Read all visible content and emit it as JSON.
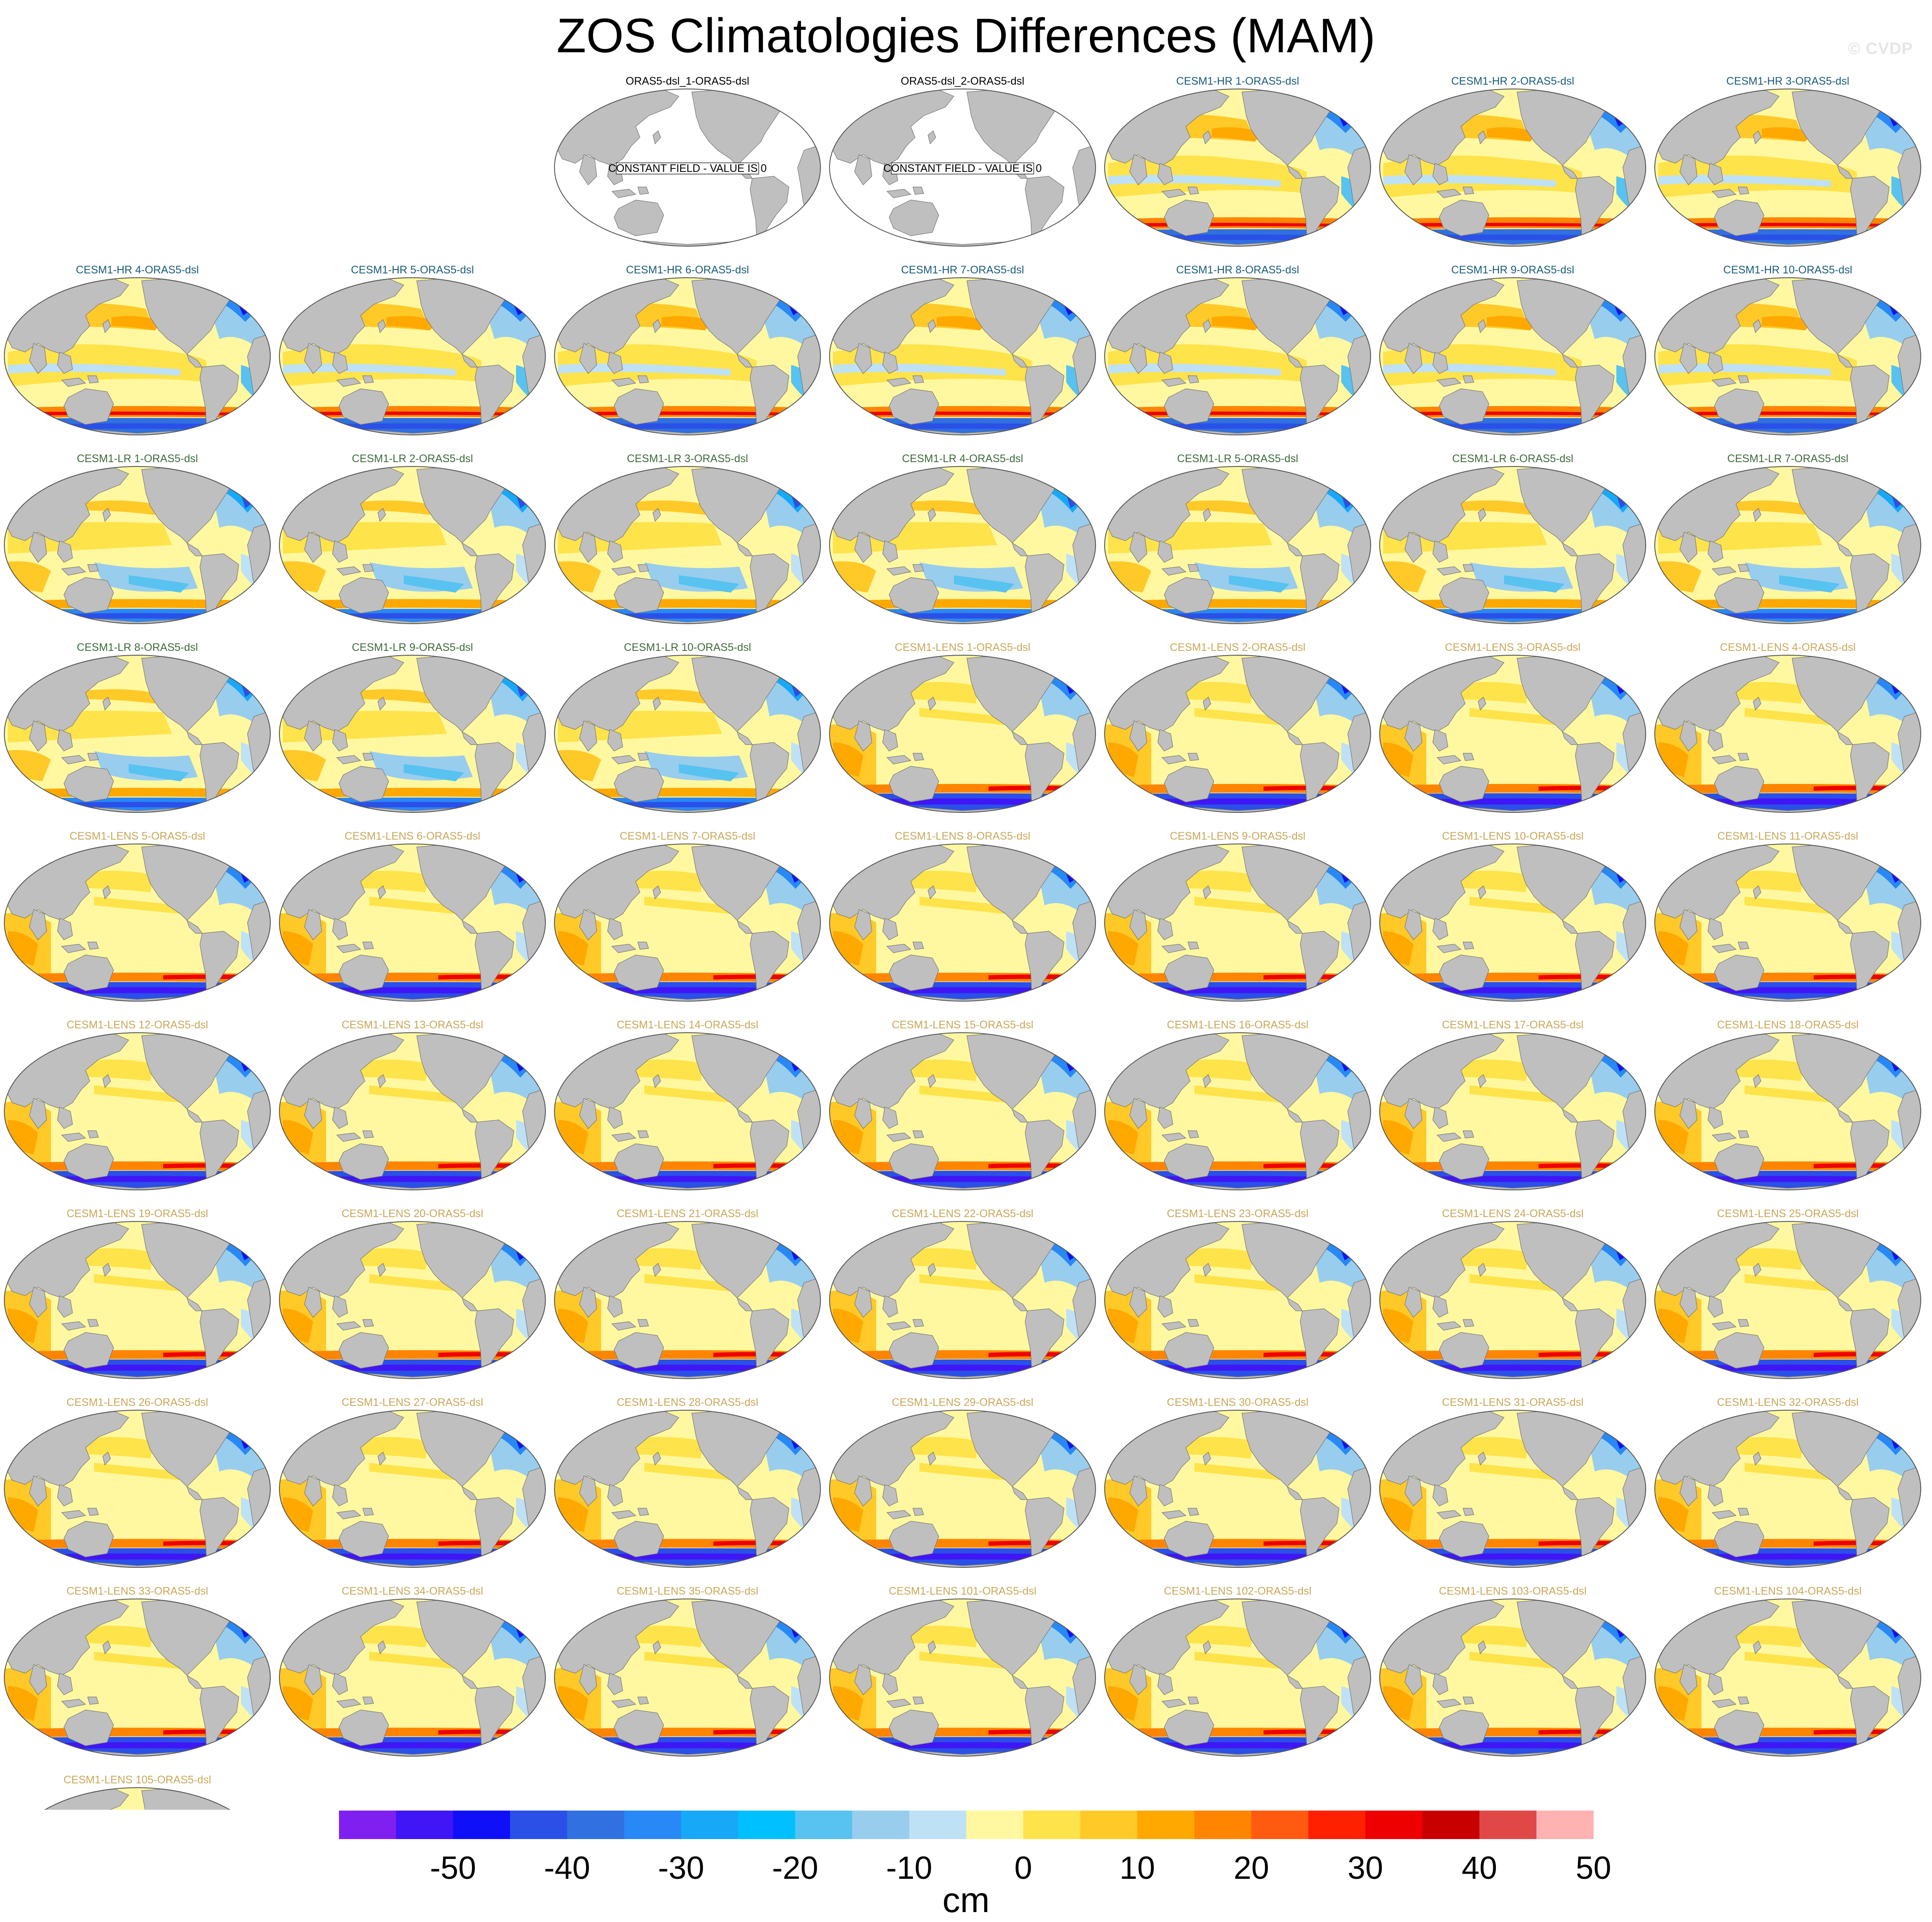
{
  "title": "ZOS Climatologies Differences (MAM)",
  "watermark": "© CVDP",
  "constant_field_note": "CONSTANT FIELD - VALUE IS 0",
  "colors": {
    "land": "#bfbfbf",
    "ocean_empty": "#ffffff",
    "label_obs": "#000000",
    "label_cesm1_hr": "#1a5c7a",
    "label_cesm1_lr": "#3d6b3a",
    "label_cesm1_lens": "#c9a75a"
  },
  "colorbar": {
    "unit": "cm",
    "bins": [
      "#8020f0",
      "#4016f6",
      "#1010f8",
      "#2a50e8",
      "#3070e0",
      "#2888f5",
      "#18a8f8",
      "#00c0ff",
      "#58c2f0",
      "#98cdee",
      "#bfe1f5",
      "#fff8a0",
      "#ffe34a",
      "#ffc928",
      "#ffa800",
      "#ff8500",
      "#ff5a10",
      "#ff2000",
      "#ee0000",
      "#c80000",
      "#e04848",
      "#ffb2b2"
    ],
    "tick_labels": [
      "-50",
      "-40",
      "-30",
      "-20",
      "-10",
      "0",
      "10",
      "20",
      "30",
      "40",
      "50"
    ]
  },
  "panels": [
    {
      "label": "ORAS5-dsl_1-ORAS5-dsl",
      "group": "obs",
      "constant": true
    },
    {
      "label": "ORAS5-dsl_2-ORAS5-dsl",
      "group": "obs",
      "constant": true
    },
    {
      "label": "CESM1-HR 1-ORAS5-dsl",
      "group": "hr"
    },
    {
      "label": "CESM1-HR 2-ORAS5-dsl",
      "group": "hr"
    },
    {
      "label": "CESM1-HR 3-ORAS5-dsl",
      "group": "hr"
    },
    {
      "label": "CESM1-HR 4-ORAS5-dsl",
      "group": "hr"
    },
    {
      "label": "CESM1-HR 5-ORAS5-dsl",
      "group": "hr"
    },
    {
      "label": "CESM1-HR 6-ORAS5-dsl",
      "group": "hr"
    },
    {
      "label": "CESM1-HR 7-ORAS5-dsl",
      "group": "hr"
    },
    {
      "label": "CESM1-HR 8-ORAS5-dsl",
      "group": "hr"
    },
    {
      "label": "CESM1-HR 9-ORAS5-dsl",
      "group": "hr"
    },
    {
      "label": "CESM1-HR 10-ORAS5-dsl",
      "group": "hr"
    },
    {
      "label": "CESM1-LR 1-ORAS5-dsl",
      "group": "lr"
    },
    {
      "label": "CESM1-LR 2-ORAS5-dsl",
      "group": "lr"
    },
    {
      "label": "CESM1-LR 3-ORAS5-dsl",
      "group": "lr"
    },
    {
      "label": "CESM1-LR 4-ORAS5-dsl",
      "group": "lr"
    },
    {
      "label": "CESM1-LR 5-ORAS5-dsl",
      "group": "lr"
    },
    {
      "label": "CESM1-LR 6-ORAS5-dsl",
      "group": "lr"
    },
    {
      "label": "CESM1-LR 7-ORAS5-dsl",
      "group": "lr"
    },
    {
      "label": "CESM1-LR 8-ORAS5-dsl",
      "group": "lr"
    },
    {
      "label": "CESM1-LR 9-ORAS5-dsl",
      "group": "lr"
    },
    {
      "label": "CESM1-LR 10-ORAS5-dsl",
      "group": "lr"
    },
    {
      "label": "CESM1-LENS 1-ORAS5-dsl",
      "group": "lens"
    },
    {
      "label": "CESM1-LENS 2-ORAS5-dsl",
      "group": "lens"
    },
    {
      "label": "CESM1-LENS 3-ORAS5-dsl",
      "group": "lens"
    },
    {
      "label": "CESM1-LENS 4-ORAS5-dsl",
      "group": "lens"
    },
    {
      "label": "CESM1-LENS 5-ORAS5-dsl",
      "group": "lens"
    },
    {
      "label": "CESM1-LENS 6-ORAS5-dsl",
      "group": "lens"
    },
    {
      "label": "CESM1-LENS 7-ORAS5-dsl",
      "group": "lens"
    },
    {
      "label": "CESM1-LENS 8-ORAS5-dsl",
      "group": "lens"
    },
    {
      "label": "CESM1-LENS 9-ORAS5-dsl",
      "group": "lens"
    },
    {
      "label": "CESM1-LENS 10-ORAS5-dsl",
      "group": "lens"
    },
    {
      "label": "CESM1-LENS 11-ORAS5-dsl",
      "group": "lens"
    },
    {
      "label": "CESM1-LENS 12-ORAS5-dsl",
      "group": "lens"
    },
    {
      "label": "CESM1-LENS 13-ORAS5-dsl",
      "group": "lens"
    },
    {
      "label": "CESM1-LENS 14-ORAS5-dsl",
      "group": "lens"
    },
    {
      "label": "CESM1-LENS 15-ORAS5-dsl",
      "group": "lens"
    },
    {
      "label": "CESM1-LENS 16-ORAS5-dsl",
      "group": "lens"
    },
    {
      "label": "CESM1-LENS 17-ORAS5-dsl",
      "group": "lens"
    },
    {
      "label": "CESM1-LENS 18-ORAS5-dsl",
      "group": "lens"
    },
    {
      "label": "CESM1-LENS 19-ORAS5-dsl",
      "group": "lens"
    },
    {
      "label": "CESM1-LENS 20-ORAS5-dsl",
      "group": "lens"
    },
    {
      "label": "CESM1-LENS 21-ORAS5-dsl",
      "group": "lens"
    },
    {
      "label": "CESM1-LENS 22-ORAS5-dsl",
      "group": "lens"
    },
    {
      "label": "CESM1-LENS 23-ORAS5-dsl",
      "group": "lens"
    },
    {
      "label": "CESM1-LENS 24-ORAS5-dsl",
      "group": "lens"
    },
    {
      "label": "CESM1-LENS 25-ORAS5-dsl",
      "group": "lens"
    },
    {
      "label": "CESM1-LENS 26-ORAS5-dsl",
      "group": "lens"
    },
    {
      "label": "CESM1-LENS 27-ORAS5-dsl",
      "group": "lens"
    },
    {
      "label": "CESM1-LENS 28-ORAS5-dsl",
      "group": "lens"
    },
    {
      "label": "CESM1-LENS 29-ORAS5-dsl",
      "group": "lens"
    },
    {
      "label": "CESM1-LENS 30-ORAS5-dsl",
      "group": "lens"
    },
    {
      "label": "CESM1-LENS 31-ORAS5-dsl",
      "group": "lens"
    },
    {
      "label": "CESM1-LENS 32-ORAS5-dsl",
      "group": "lens"
    },
    {
      "label": "CESM1-LENS 33-ORAS5-dsl",
      "group": "lens"
    },
    {
      "label": "CESM1-LENS 34-ORAS5-dsl",
      "group": "lens"
    },
    {
      "label": "CESM1-LENS 35-ORAS5-dsl",
      "group": "lens"
    },
    {
      "label": "CESM1-LENS 101-ORAS5-dsl",
      "group": "lens"
    },
    {
      "label": "CESM1-LENS 102-ORAS5-dsl",
      "group": "lens"
    },
    {
      "label": "CESM1-LENS 103-ORAS5-dsl",
      "group": "lens"
    },
    {
      "label": "CESM1-LENS 104-ORAS5-dsl",
      "group": "lens"
    },
    {
      "label": "CESM1-LENS 105-ORAS5-dsl",
      "group": "lens"
    }
  ]
}
